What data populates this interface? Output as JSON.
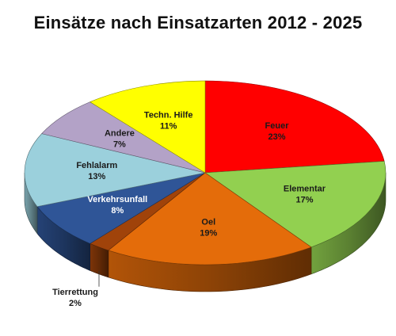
{
  "chart_data": {
    "type": "pie",
    "title": "Einsätze nach Einsatzarten 2012 - 2025",
    "start_angle_deg": 0,
    "direction": "clockwise",
    "slices": [
      {
        "name": "Feuer",
        "percent_label": "23%",
        "value": 23,
        "color": "#ff0000",
        "label_color": "#1a1a1a"
      },
      {
        "name": "Elementar",
        "percent_label": "17%",
        "value": 17,
        "color": "#92d050",
        "label_color": "#1a1a1a"
      },
      {
        "name": "Oel",
        "percent_label": "19%",
        "value": 19,
        "color": "#e46c0a",
        "label_color": "#1a1a1a"
      },
      {
        "name": "Tierrettung",
        "percent_label": "2%",
        "value": 2,
        "color": "#a0430a",
        "label_color": "#1a1a1a",
        "outside": true
      },
      {
        "name": "Verkehrsunfall",
        "percent_label": "8%",
        "value": 8,
        "color": "#2f5597",
        "label_color": "#ffffff"
      },
      {
        "name": "Fehlalarm",
        "percent_label": "13%",
        "value": 13,
        "color": "#9bd0dc",
        "label_color": "#1a1a1a"
      },
      {
        "name": "Andere",
        "percent_label": "7%",
        "value": 7,
        "color": "#b3a2c7",
        "label_color": "#1a1a1a"
      },
      {
        "name": "Techn. Hilfe",
        "percent_label": "11%",
        "value": 11,
        "color": "#ffff00",
        "label_color": "#1a1a1a"
      }
    ]
  }
}
